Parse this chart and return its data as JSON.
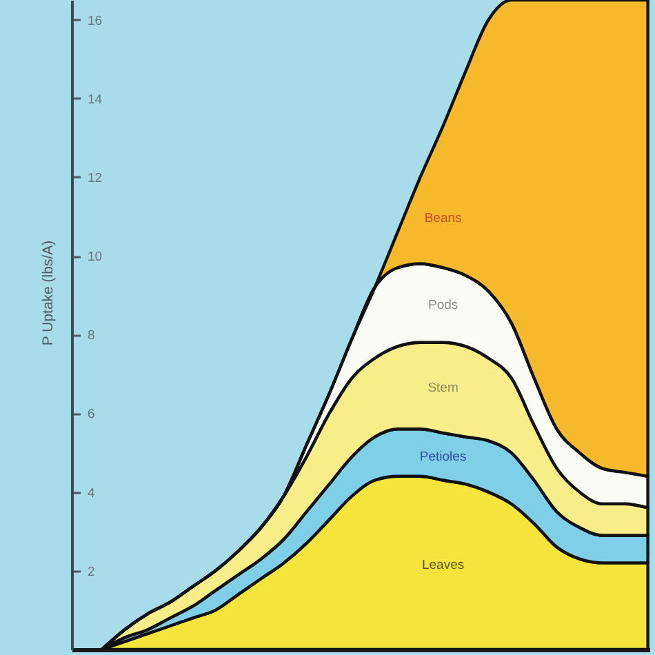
{
  "chart_data": {
    "type": "area",
    "stacked": true,
    "ylabel": "P Uptake (lbs/A)",
    "categories": [
      null,
      null,
      null,
      null,
      null,
      null,
      null,
      null,
      null,
      null,
      null,
      null,
      null,
      null,
      null,
      null,
      null,
      null,
      null,
      null,
      null,
      null,
      null,
      null,
      null
    ],
    "ylim": [
      0,
      16.5
    ],
    "yticks": [
      2,
      4,
      6,
      8,
      10,
      12,
      14,
      16
    ],
    "tick_labels": "y",
    "series": [
      {
        "name": "Leaves",
        "color": "#f4e43c",
        "values": [
          0,
          0.2,
          0.4,
          0.6,
          0.8,
          1.0,
          1.4,
          1.8,
          2.2,
          2.7,
          3.3,
          3.9,
          4.3,
          4.4,
          4.4,
          4.3,
          4.2,
          4.0,
          3.7,
          3.2,
          2.6,
          2.3,
          2.2,
          2.2,
          2.2
        ]
      },
      {
        "name": "Petioles",
        "color": "#7fcfe8",
        "values": [
          0,
          0.1,
          0.1,
          0.2,
          0.3,
          0.5,
          0.5,
          0.5,
          0.6,
          0.8,
          0.9,
          1.0,
          1.1,
          1.2,
          1.2,
          1.2,
          1.2,
          1.3,
          1.3,
          1.1,
          0.9,
          0.8,
          0.7,
          0.7,
          0.7
        ]
      },
      {
        "name": "Stem",
        "color": "#f7ee8a",
        "values": [
          0,
          0.2,
          0.4,
          0.4,
          0.5,
          0.5,
          0.6,
          0.8,
          1.1,
          1.4,
          1.8,
          2.0,
          2.0,
          2.1,
          2.2,
          2.3,
          2.3,
          2.1,
          1.9,
          1.4,
          1.1,
          0.9,
          0.8,
          0.8,
          0.7
        ]
      },
      {
        "name": "Pods",
        "color": "#fbfbf6",
        "values": [
          0,
          0,
          0,
          0,
          0,
          0,
          0,
          0,
          0,
          0.3,
          0.5,
          1.0,
          1.8,
          2.0,
          2.0,
          1.9,
          1.8,
          1.7,
          1.4,
          1.2,
          1.0,
          1.0,
          0.9,
          0.8,
          0.8
        ]
      },
      {
        "name": "Beans",
        "color": "#f6b92c",
        "values": [
          0,
          0,
          0,
          0,
          0,
          0,
          0,
          0,
          0,
          0,
          0,
          0,
          0,
          0.9,
          2.2,
          3.6,
          5.2,
          6.9,
          8.2,
          9.6,
          10.9,
          11.5,
          11.9,
          12.0,
          12.1
        ]
      }
    ]
  }
}
